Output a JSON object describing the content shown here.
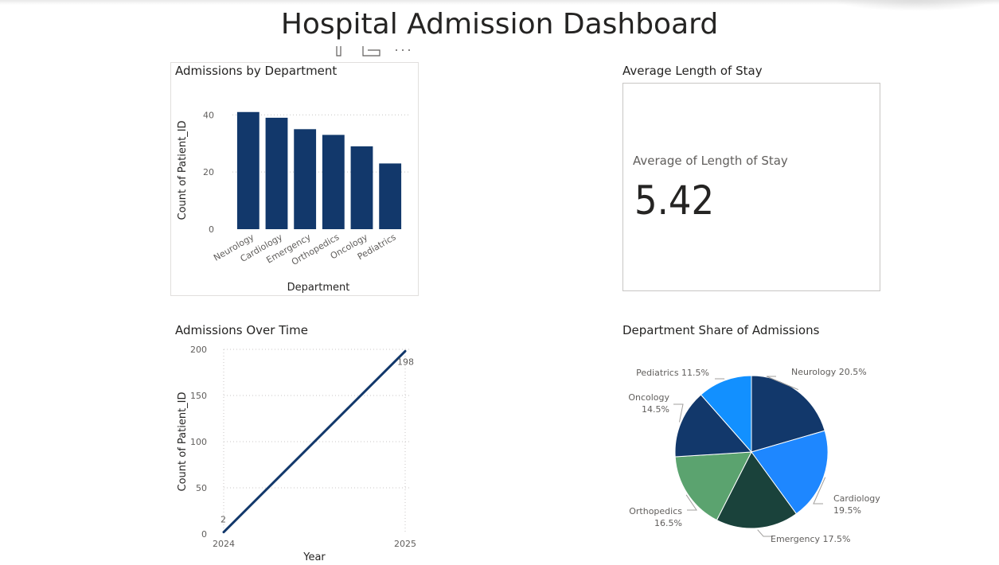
{
  "dashboard": {
    "title": "Hospital Admission Dashboard"
  },
  "visuals": {
    "bar_title": "Admissions by Department",
    "card_title": "Average Length of Stay",
    "line_title": "Admissions Over Time",
    "pie_title": "Department Share of Admissions"
  },
  "card": {
    "label": "Average of Length of Stay",
    "value": "5.42"
  },
  "colors": {
    "bar": "#12386b",
    "line": "#12386b",
    "grid": "#c8c6c4",
    "axis_text": "#605e5c"
  },
  "chart_data": [
    {
      "type": "bar",
      "title": "Admissions by Department",
      "xlabel": "Department",
      "ylabel": "Count of Patient_ID",
      "categories": [
        "Neurology",
        "Cardiology",
        "Emergency",
        "Orthopedics",
        "Oncology",
        "Pediatrics"
      ],
      "values": [
        41,
        39,
        35,
        33,
        29,
        23
      ],
      "ylim": [
        0,
        44
      ],
      "yticks": [
        0,
        20,
        40
      ],
      "grid": true
    },
    {
      "type": "line",
      "title": "Admissions Over Time",
      "xlabel": "Year",
      "ylabel": "Count of Patient_ID",
      "x": [
        2024,
        2025
      ],
      "x_labels": [
        "2024",
        "2025"
      ],
      "values": [
        2,
        198
      ],
      "data_labels": [
        "2",
        "198"
      ],
      "ylim": [
        0,
        200
      ],
      "yticks": [
        0,
        50,
        100,
        150,
        200
      ],
      "grid": true
    },
    {
      "type": "pie",
      "title": "Department Share of Admissions",
      "slices": [
        {
          "label": "Neurology",
          "percent": 20.5,
          "text": "Neurology 20.5%",
          "color": "#12386b"
        },
        {
          "label": "Cardiology",
          "percent": 19.5,
          "text": "Cardiology 19.5%",
          "color": "#1e87ff"
        },
        {
          "label": "Emergency",
          "percent": 17.5,
          "text": "Emergency 17.5%",
          "color": "#1a423b"
        },
        {
          "label": "Orthopedics",
          "percent": 16.5,
          "text": "Orthopedics 16.5%",
          "color": "#5ba36f"
        },
        {
          "label": "Oncology",
          "percent": 14.5,
          "text": "Oncology 14.5%",
          "color": "#12386b"
        },
        {
          "label": "Pediatrics",
          "percent": 11.5,
          "text": "Pediatrics 11.5%",
          "color": "#1290ff"
        }
      ]
    }
  ]
}
